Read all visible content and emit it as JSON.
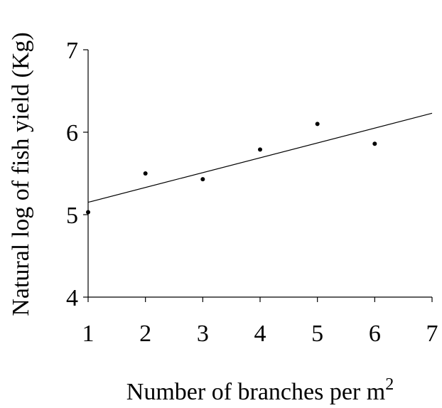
{
  "chart_data": {
    "type": "scatter",
    "xlabel": "Number of branches per m",
    "xlabel_superscript": "2",
    "ylabel": "Natural log of fish yield (Kg)",
    "xlim": [
      1,
      7
    ],
    "ylim": [
      4,
      7
    ],
    "xticks": [
      "1",
      "2",
      "3",
      "4",
      "5",
      "6",
      "7"
    ],
    "yticks": [
      "4",
      "5",
      "6",
      "7"
    ],
    "grid": false,
    "legend": "none",
    "series": [
      {
        "points": [
          {
            "x": 1,
            "y": 5.03
          },
          {
            "x": 2,
            "y": 5.5
          },
          {
            "x": 3,
            "y": 5.43
          },
          {
            "x": 4,
            "y": 5.79
          },
          {
            "x": 5,
            "y": 6.1
          },
          {
            "x": 6,
            "y": 5.86
          }
        ],
        "color": "#000000"
      }
    ],
    "trendline": {
      "type": "linear",
      "x": [
        1,
        7
      ],
      "y": [
        5.15,
        6.23
      ],
      "color": "#000000"
    }
  }
}
